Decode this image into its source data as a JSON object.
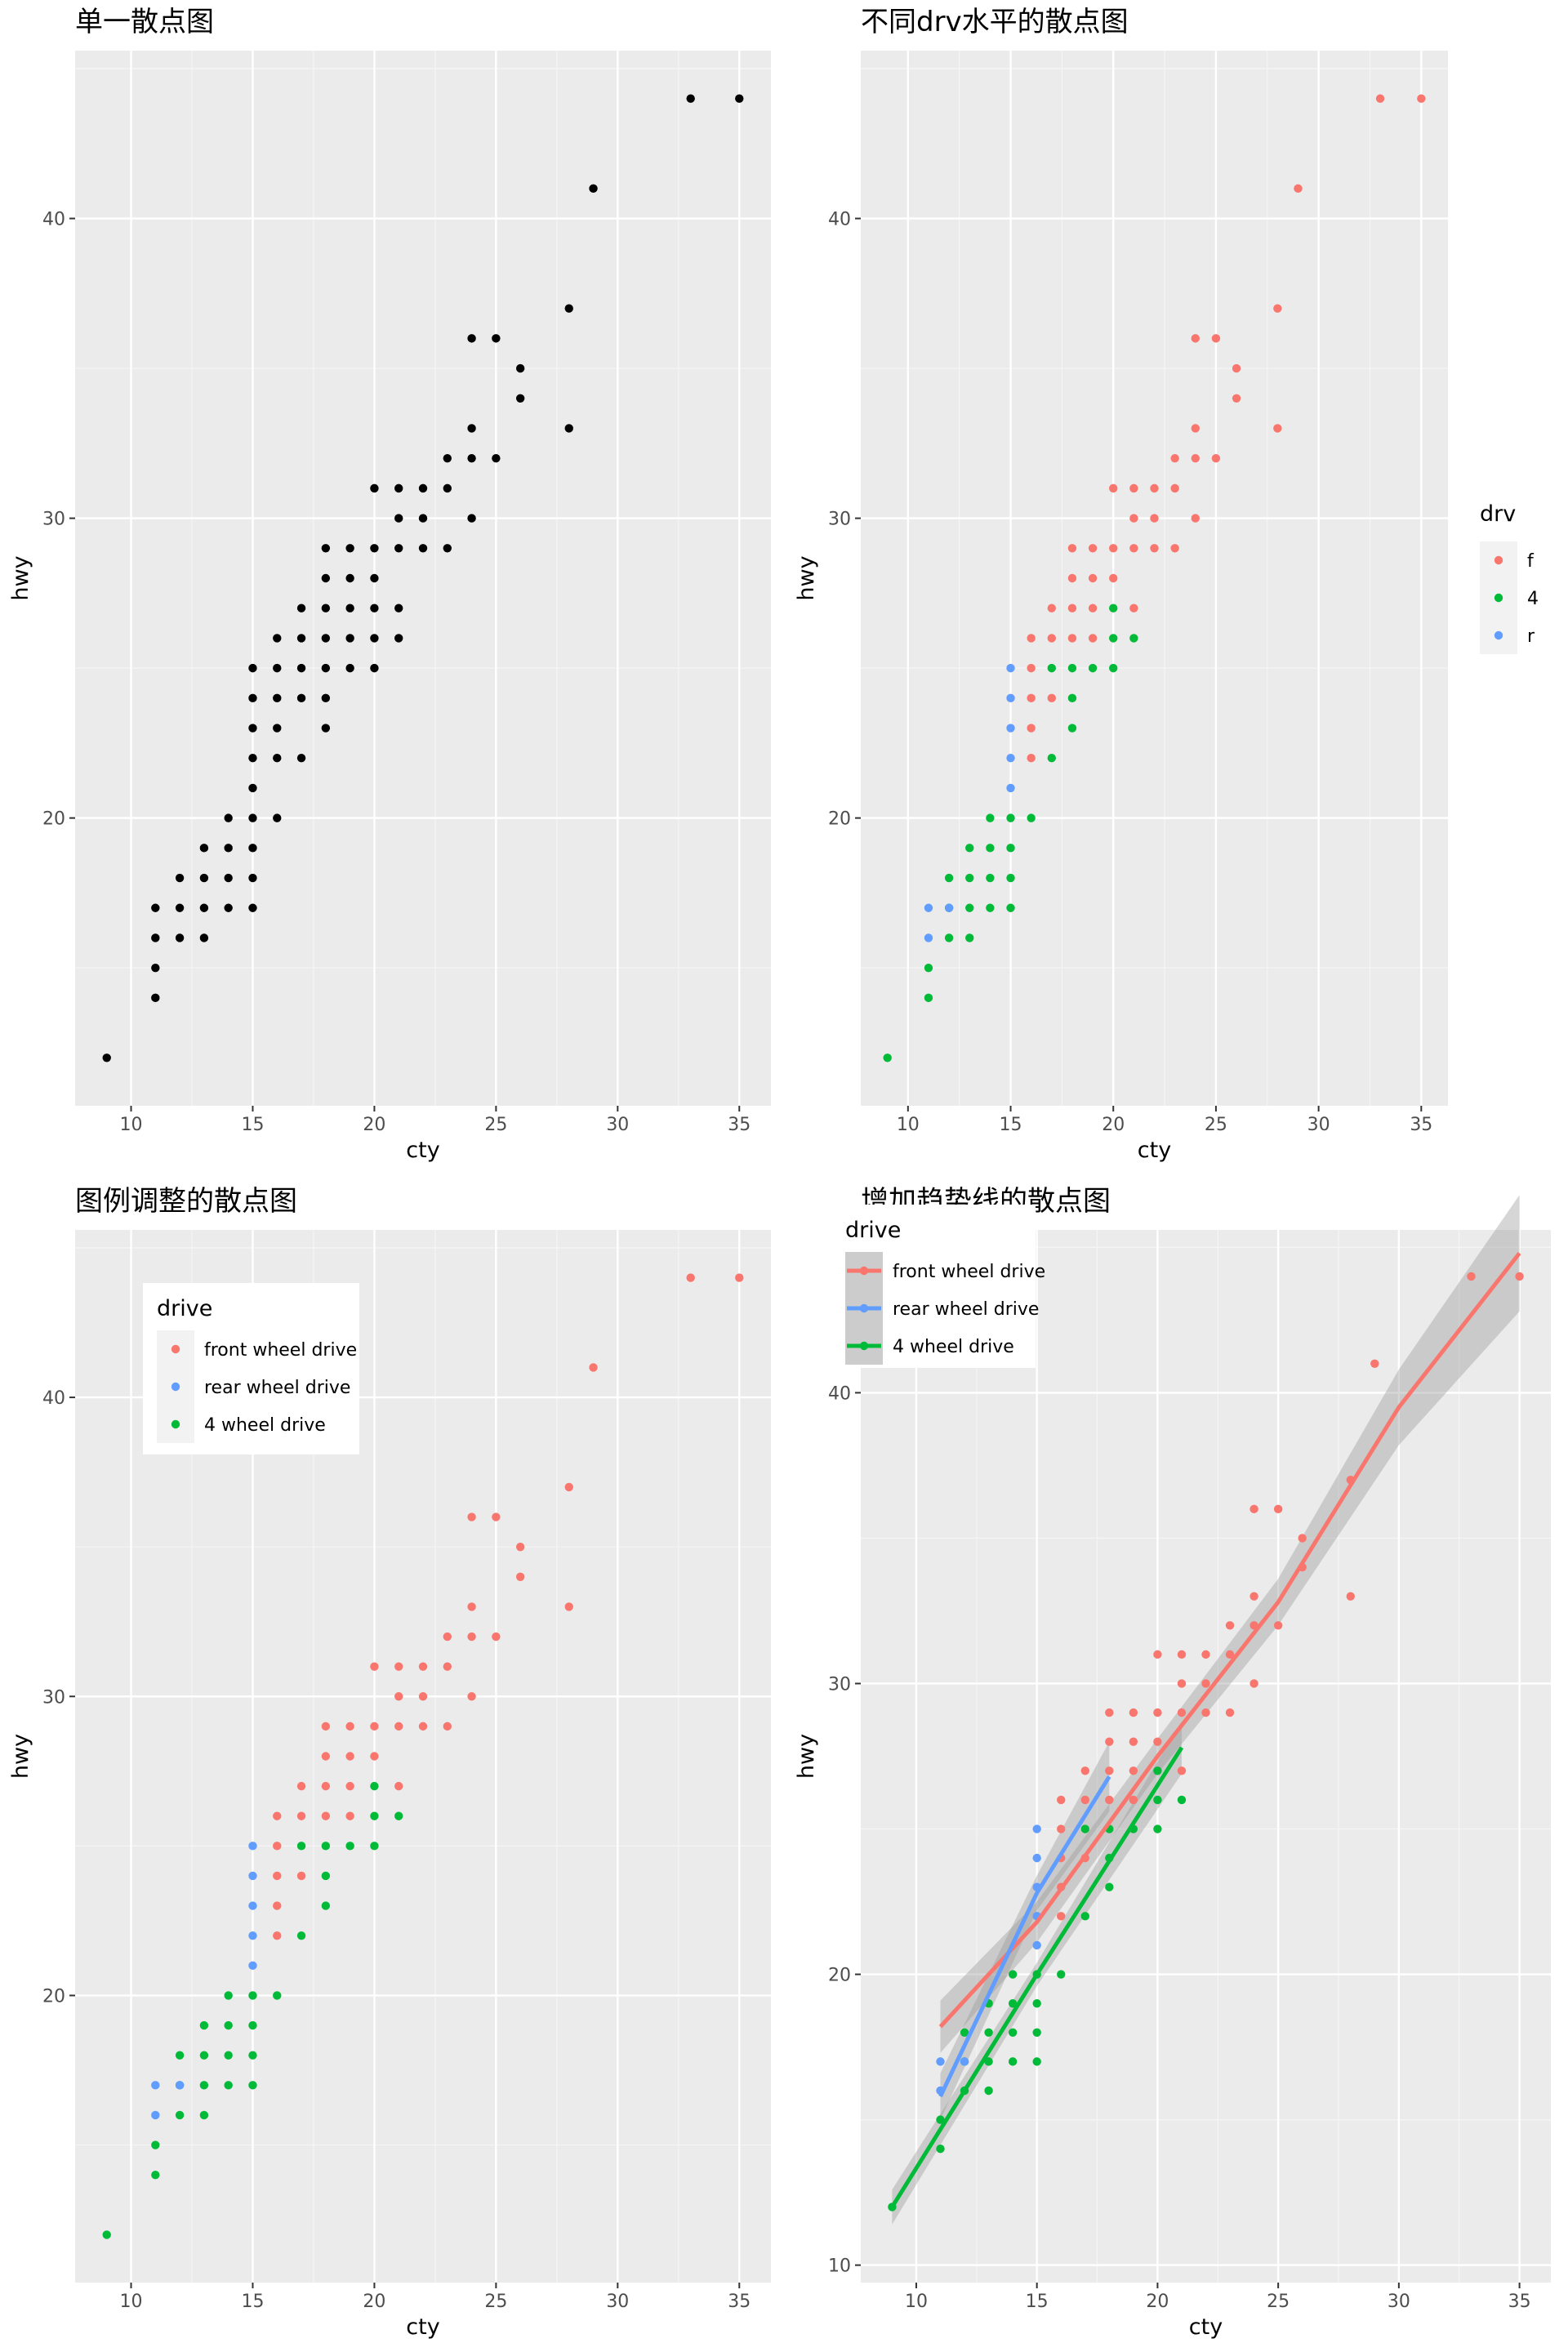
{
  "chart_data": [
    {
      "id": "p1",
      "type": "scatter",
      "title": "单一散点图",
      "xlabel": "cty",
      "ylabel": "hwy",
      "xlim": [
        7.7,
        36.3
      ],
      "ylim": [
        10.4,
        45.6
      ],
      "xticks": [
        10,
        15,
        20,
        25,
        30,
        35
      ],
      "yticks": [
        20,
        30,
        40
      ],
      "color_by": "none",
      "points": [
        [
          9,
          12
        ],
        [
          11,
          14
        ],
        [
          11,
          15
        ],
        [
          11,
          16
        ],
        [
          11,
          17
        ],
        [
          12,
          16
        ],
        [
          12,
          17
        ],
        [
          12,
          18
        ],
        [
          13,
          16
        ],
        [
          13,
          17
        ],
        [
          13,
          18
        ],
        [
          13,
          19
        ],
        [
          14,
          17
        ],
        [
          14,
          18
        ],
        [
          14,
          19
        ],
        [
          14,
          20
        ],
        [
          15,
          17
        ],
        [
          15,
          18
        ],
        [
          15,
          19
        ],
        [
          15,
          20
        ],
        [
          15,
          21
        ],
        [
          15,
          22
        ],
        [
          15,
          23
        ],
        [
          15,
          24
        ],
        [
          15,
          25
        ],
        [
          16,
          20
        ],
        [
          16,
          22
        ],
        [
          16,
          23
        ],
        [
          16,
          24
        ],
        [
          16,
          25
        ],
        [
          16,
          26
        ],
        [
          17,
          22
        ],
        [
          17,
          24
        ],
        [
          17,
          25
        ],
        [
          17,
          26
        ],
        [
          17,
          27
        ],
        [
          18,
          23
        ],
        [
          18,
          24
        ],
        [
          18,
          25
        ],
        [
          18,
          26
        ],
        [
          18,
          27
        ],
        [
          18,
          28
        ],
        [
          18,
          29
        ],
        [
          19,
          25
        ],
        [
          19,
          26
        ],
        [
          19,
          27
        ],
        [
          19,
          28
        ],
        [
          19,
          29
        ],
        [
          20,
          25
        ],
        [
          20,
          26
        ],
        [
          20,
          27
        ],
        [
          20,
          28
        ],
        [
          20,
          29
        ],
        [
          20,
          31
        ],
        [
          21,
          26
        ],
        [
          21,
          27
        ],
        [
          21,
          29
        ],
        [
          21,
          30
        ],
        [
          21,
          31
        ],
        [
          22,
          29
        ],
        [
          22,
          30
        ],
        [
          22,
          31
        ],
        [
          23,
          29
        ],
        [
          23,
          31
        ],
        [
          23,
          32
        ],
        [
          24,
          30
        ],
        [
          24,
          32
        ],
        [
          24,
          33
        ],
        [
          24,
          36
        ],
        [
          25,
          32
        ],
        [
          25,
          36
        ],
        [
          26,
          34
        ],
        [
          26,
          35
        ],
        [
          28,
          33
        ],
        [
          28,
          37
        ],
        [
          29,
          41
        ],
        [
          33,
          44
        ],
        [
          35,
          44
        ]
      ]
    },
    {
      "id": "p2",
      "type": "scatter",
      "title": "不同drv水平的散点图",
      "xlabel": "cty",
      "ylabel": "hwy",
      "xlim": [
        7.7,
        36.3
      ],
      "ylim": [
        10.4,
        45.6
      ],
      "xticks": [
        10,
        15,
        20,
        25,
        30,
        35
      ],
      "yticks": [
        20,
        30,
        40
      ],
      "color_by": "drv",
      "legend": {
        "title": "drv",
        "position": "right",
        "entries": [
          {
            "key": "f",
            "label": "f",
            "color": "#F8766D"
          },
          {
            "key": "4",
            "label": "4",
            "color": "#00BA38"
          },
          {
            "key": "r",
            "label": "r",
            "color": "#619CFF"
          }
        ]
      },
      "points_by_group": {
        "4": [
          [
            9,
            12
          ],
          [
            11,
            14
          ],
          [
            11,
            15
          ],
          [
            12,
            16
          ],
          [
            12,
            17
          ],
          [
            12,
            18
          ],
          [
            13,
            16
          ],
          [
            13,
            17
          ],
          [
            13,
            18
          ],
          [
            13,
            19
          ],
          [
            14,
            17
          ],
          [
            14,
            18
          ],
          [
            14,
            19
          ],
          [
            14,
            20
          ],
          [
            15,
            17
          ],
          [
            15,
            18
          ],
          [
            15,
            19
          ],
          [
            15,
            20
          ],
          [
            16,
            20
          ],
          [
            17,
            22
          ],
          [
            17,
            25
          ],
          [
            18,
            23
          ],
          [
            18,
            24
          ],
          [
            18,
            25
          ],
          [
            19,
            25
          ],
          [
            20,
            25
          ],
          [
            20,
            26
          ],
          [
            20,
            27
          ],
          [
            21,
            26
          ]
        ],
        "r": [
          [
            11,
            16
          ],
          [
            11,
            17
          ],
          [
            12,
            17
          ],
          [
            15,
            21
          ],
          [
            15,
            22
          ],
          [
            15,
            23
          ],
          [
            15,
            24
          ],
          [
            15,
            25
          ]
        ],
        "f": [
          [
            16,
            22
          ],
          [
            16,
            23
          ],
          [
            16,
            24
          ],
          [
            16,
            25
          ],
          [
            16,
            26
          ],
          [
            17,
            24
          ],
          [
            17,
            26
          ],
          [
            17,
            27
          ],
          [
            18,
            26
          ],
          [
            18,
            27
          ],
          [
            18,
            28
          ],
          [
            18,
            29
          ],
          [
            19,
            26
          ],
          [
            19,
            27
          ],
          [
            19,
            28
          ],
          [
            19,
            29
          ],
          [
            20,
            28
          ],
          [
            20,
            29
          ],
          [
            20,
            31
          ],
          [
            21,
            27
          ],
          [
            21,
            29
          ],
          [
            21,
            30
          ],
          [
            21,
            31
          ],
          [
            22,
            29
          ],
          [
            22,
            30
          ],
          [
            22,
            31
          ],
          [
            23,
            29
          ],
          [
            23,
            31
          ],
          [
            23,
            32
          ],
          [
            24,
            30
          ],
          [
            24,
            32
          ],
          [
            24,
            33
          ],
          [
            24,
            36
          ],
          [
            25,
            32
          ],
          [
            25,
            36
          ],
          [
            26,
            34
          ],
          [
            26,
            35
          ],
          [
            28,
            33
          ],
          [
            28,
            37
          ],
          [
            29,
            41
          ],
          [
            33,
            44
          ],
          [
            35,
            44
          ]
        ]
      }
    },
    {
      "id": "p3",
      "type": "scatter",
      "title": "图例调整的散点图",
      "xlabel": "cty",
      "ylabel": "hwy",
      "xlim": [
        7.7,
        36.3
      ],
      "ylim": [
        10.4,
        45.6
      ],
      "xticks": [
        10,
        15,
        20,
        25,
        30,
        35
      ],
      "yticks": [
        20,
        30,
        40
      ],
      "color_by": "drv",
      "legend": {
        "title": "drive",
        "position": "top-left-inside",
        "entries": [
          {
            "key": "f",
            "label": "front wheel drive",
            "color": "#F8766D"
          },
          {
            "key": "r",
            "label": "rear wheel drive",
            "color": "#619CFF"
          },
          {
            "key": "4",
            "label": "4 wheel drive",
            "color": "#00BA38"
          }
        ]
      },
      "points_from": "p2"
    },
    {
      "id": "p4",
      "type": "scatter",
      "title": "增加趋势线的散点图",
      "xlabel": "cty",
      "ylabel": "hwy",
      "xlim": [
        7.7,
        36.3
      ],
      "ylim": [
        9.4,
        45.6
      ],
      "xticks": [
        10,
        15,
        20,
        25,
        30,
        35
      ],
      "yticks": [
        10,
        20,
        30,
        40
      ],
      "color_by": "drv",
      "legend": {
        "title": "drive",
        "position": "top-left-inside",
        "entries": [
          {
            "key": "f",
            "label": "front wheel drive",
            "color": "#F8766D"
          },
          {
            "key": "r",
            "label": "rear wheel drive",
            "color": "#619CFF"
          },
          {
            "key": "4",
            "label": "4 wheel drive",
            "color": "#00BA38"
          }
        ]
      },
      "points_from": "p2",
      "trend_lines": [
        {
          "key": "f",
          "points": [
            [
              11,
              18.2
            ],
            [
              15,
              21.8
            ],
            [
              20,
              27.5
            ],
            [
              25,
              32.8
            ],
            [
              30,
              39.5
            ],
            [
              35,
              44.8
            ]
          ],
          "band": [
            [
              11,
              0.9
            ],
            [
              15,
              0.7
            ],
            [
              20,
              0.6
            ],
            [
              25,
              0.8
            ],
            [
              30,
              1.3
            ],
            [
              35,
              2.0
            ]
          ]
        },
        {
          "key": "r",
          "points": [
            [
              11,
              15.8
            ],
            [
              15,
              22.8
            ],
            [
              18,
              26.8
            ]
          ],
          "band": [
            [
              11,
              0.8
            ],
            [
              15,
              0.6
            ],
            [
              18,
              1.2
            ]
          ]
        },
        {
          "key": "4",
          "points": [
            [
              9,
              12.0
            ],
            [
              15,
              20.0
            ],
            [
              21,
              27.8
            ]
          ],
          "band": [
            [
              9,
              0.6
            ],
            [
              15,
              0.4
            ],
            [
              21,
              0.9
            ]
          ]
        }
      ]
    }
  ]
}
